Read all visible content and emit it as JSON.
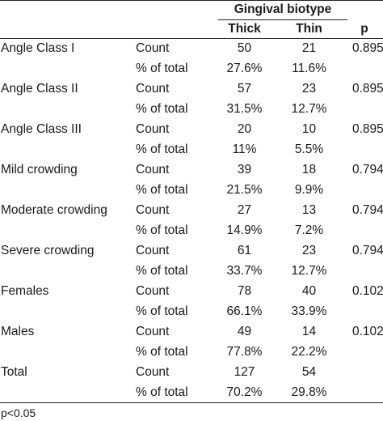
{
  "header": {
    "group_label": "Gingival biotype",
    "columns": [
      "Thick",
      "Thin",
      "p"
    ]
  },
  "rows": [
    {
      "label": "Angle Class I",
      "count_label": "Count",
      "pct_label": "% of total",
      "thick_count": "50",
      "thin_count": "21",
      "thick_pct": "27.6%",
      "thin_pct": "11.6%",
      "p": "0.895"
    },
    {
      "label": "Angle Class II",
      "count_label": "Count",
      "pct_label": "% of total",
      "thick_count": "57",
      "thin_count": "23",
      "thick_pct": "31.5%",
      "thin_pct": "12.7%",
      "p": "0.895"
    },
    {
      "label": "Angle Class III",
      "count_label": "Count",
      "pct_label": "% of total",
      "thick_count": "20",
      "thin_count": "10",
      "thick_pct": "11%",
      "thin_pct": "5.5%",
      "p": "0.895"
    },
    {
      "label": "Mild crowding",
      "count_label": "Count",
      "pct_label": "% of total",
      "thick_count": "39",
      "thin_count": "18",
      "thick_pct": "21.5%",
      "thin_pct": "9.9%",
      "p": "0.794"
    },
    {
      "label": "Moderate crowding",
      "count_label": "Count",
      "pct_label": "% of total",
      "thick_count": "27",
      "thin_count": "13",
      "thick_pct": "14.9%",
      "thin_pct": "7.2%",
      "p": "0.794"
    },
    {
      "label": "Severe crowding",
      "count_label": "Count",
      "pct_label": "% of total",
      "thick_count": "61",
      "thin_count": "23",
      "thick_pct": "33.7%",
      "thin_pct": "12.7%",
      "p": "0.794"
    },
    {
      "label": "Females",
      "count_label": "Count",
      "pct_label": "% of total",
      "thick_count": "78",
      "thin_count": "40",
      "thick_pct": "66.1%",
      "thin_pct": "33.9%",
      "p": "0.102"
    },
    {
      "label": "Males",
      "count_label": "Count",
      "pct_label": "% of total",
      "thick_count": "49",
      "thin_count": "14",
      "thick_pct": "77.8%",
      "thin_pct": "22.2%",
      "p": "0.102"
    },
    {
      "label": "Total",
      "count_label": "Count",
      "pct_label": "% of total",
      "thick_count": "127",
      "thin_count": "54",
      "thick_pct": "70.2%",
      "thin_pct": "29.8%",
      "p": ""
    }
  ],
  "footnote": "p<0.05"
}
